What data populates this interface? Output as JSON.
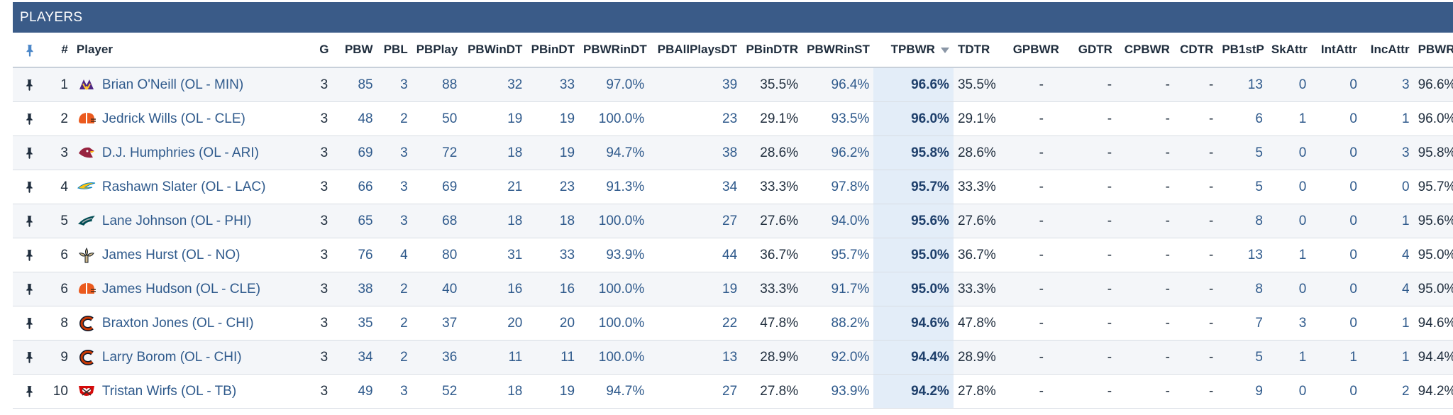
{
  "panel": {
    "title": "PLAYERS"
  },
  "columns": [
    {
      "key": "pin",
      "label": ""
    },
    {
      "key": "rank",
      "label": "#"
    },
    {
      "key": "player",
      "label": "Player"
    },
    {
      "key": "G",
      "label": "G"
    },
    {
      "key": "PBW",
      "label": "PBW"
    },
    {
      "key": "PBL",
      "label": "PBL"
    },
    {
      "key": "PBPlay",
      "label": "PBPlay"
    },
    {
      "key": "PBWinDT",
      "label": "PBWinDT"
    },
    {
      "key": "PBinDT",
      "label": "PBinDT"
    },
    {
      "key": "PBWRinDT",
      "label": "PBWRinDT"
    },
    {
      "key": "PBAllPlaysDT",
      "label": "PBAllPlaysDT"
    },
    {
      "key": "PBinDTR",
      "label": "PBinDTR"
    },
    {
      "key": "PBWRinST",
      "label": "PBWRinST"
    },
    {
      "key": "TPBWR",
      "label": "TPBWR"
    },
    {
      "key": "TDTR",
      "label": "TDTR"
    },
    {
      "key": "GPBWR",
      "label": "GPBWR"
    },
    {
      "key": "GDTR",
      "label": "GDTR"
    },
    {
      "key": "CPBWR",
      "label": "CPBWR"
    },
    {
      "key": "CDTR",
      "label": "CDTR"
    },
    {
      "key": "PB1stP",
      "label": "PB1stP"
    },
    {
      "key": "SkAttr",
      "label": "SkAttr"
    },
    {
      "key": "IntAttr",
      "label": "IntAttr"
    },
    {
      "key": "IncAttr",
      "label": "IncAttr"
    },
    {
      "key": "PBWR",
      "label": "PBWR"
    }
  ],
  "sorted_column": "TPBWR",
  "icons": {
    "pin": "pin-icon",
    "sort": "sort-descending-icon"
  },
  "colors": {
    "header_bg": "#3a5b88",
    "link": "#2f5a8c",
    "sorted_bg": "#e3edf8"
  },
  "rows": [
    {
      "rank": "1",
      "player": "Brian O'Neill (OL - MIN)",
      "team": "MIN",
      "G": "3",
      "PBW": "85",
      "PBL": "3",
      "PBPlay": "88",
      "PBWinDT": "32",
      "PBinDT": "33",
      "PBWRinDT": "97.0%",
      "PBAllPlaysDT": "39",
      "PBinDTR": "35.5%",
      "PBWRinST": "96.4%",
      "TPBWR": "96.6%",
      "TDTR": "35.5%",
      "GPBWR": "-",
      "GDTR": "-",
      "CPBWR": "-",
      "CDTR": "-",
      "PB1stP": "13",
      "SkAttr": "0",
      "IntAttr": "0",
      "IncAttr": "3",
      "PBWR": "96.6%"
    },
    {
      "rank": "2",
      "player": "Jedrick Wills (OL - CLE)",
      "team": "CLE",
      "G": "3",
      "PBW": "48",
      "PBL": "2",
      "PBPlay": "50",
      "PBWinDT": "19",
      "PBinDT": "19",
      "PBWRinDT": "100.0%",
      "PBAllPlaysDT": "23",
      "PBinDTR": "29.1%",
      "PBWRinST": "93.5%",
      "TPBWR": "96.0%",
      "TDTR": "29.1%",
      "GPBWR": "-",
      "GDTR": "-",
      "CPBWR": "-",
      "CDTR": "-",
      "PB1stP": "6",
      "SkAttr": "1",
      "IntAttr": "0",
      "IncAttr": "1",
      "PBWR": "96.0%"
    },
    {
      "rank": "3",
      "player": "D.J. Humphries (OL - ARI)",
      "team": "ARI",
      "G": "3",
      "PBW": "69",
      "PBL": "3",
      "PBPlay": "72",
      "PBWinDT": "18",
      "PBinDT": "19",
      "PBWRinDT": "94.7%",
      "PBAllPlaysDT": "38",
      "PBinDTR": "28.6%",
      "PBWRinST": "96.2%",
      "TPBWR": "95.8%",
      "TDTR": "28.6%",
      "GPBWR": "-",
      "GDTR": "-",
      "CPBWR": "-",
      "CDTR": "-",
      "PB1stP": "5",
      "SkAttr": "0",
      "IntAttr": "0",
      "IncAttr": "3",
      "PBWR": "95.8%"
    },
    {
      "rank": "4",
      "player": "Rashawn Slater (OL - LAC)",
      "team": "LAC",
      "G": "3",
      "PBW": "66",
      "PBL": "3",
      "PBPlay": "69",
      "PBWinDT": "21",
      "PBinDT": "23",
      "PBWRinDT": "91.3%",
      "PBAllPlaysDT": "34",
      "PBinDTR": "33.3%",
      "PBWRinST": "97.8%",
      "TPBWR": "95.7%",
      "TDTR": "33.3%",
      "GPBWR": "-",
      "GDTR": "-",
      "CPBWR": "-",
      "CDTR": "-",
      "PB1stP": "5",
      "SkAttr": "0",
      "IntAttr": "0",
      "IncAttr": "0",
      "PBWR": "95.7%"
    },
    {
      "rank": "5",
      "player": "Lane Johnson (OL - PHI)",
      "team": "PHI",
      "G": "3",
      "PBW": "65",
      "PBL": "3",
      "PBPlay": "68",
      "PBWinDT": "18",
      "PBinDT": "18",
      "PBWRinDT": "100.0%",
      "PBAllPlaysDT": "27",
      "PBinDTR": "27.6%",
      "PBWRinST": "94.0%",
      "TPBWR": "95.6%",
      "TDTR": "27.6%",
      "GPBWR": "-",
      "GDTR": "-",
      "CPBWR": "-",
      "CDTR": "-",
      "PB1stP": "8",
      "SkAttr": "0",
      "IntAttr": "0",
      "IncAttr": "1",
      "PBWR": "95.6%"
    },
    {
      "rank": "6",
      "player": "James Hurst (OL - NO)",
      "team": "NO",
      "G": "3",
      "PBW": "76",
      "PBL": "4",
      "PBPlay": "80",
      "PBWinDT": "31",
      "PBinDT": "33",
      "PBWRinDT": "93.9%",
      "PBAllPlaysDT": "44",
      "PBinDTR": "36.7%",
      "PBWRinST": "95.7%",
      "TPBWR": "95.0%",
      "TDTR": "36.7%",
      "GPBWR": "-",
      "GDTR": "-",
      "CPBWR": "-",
      "CDTR": "-",
      "PB1stP": "13",
      "SkAttr": "1",
      "IntAttr": "0",
      "IncAttr": "4",
      "PBWR": "95.0%"
    },
    {
      "rank": "6",
      "player": "James Hudson (OL - CLE)",
      "team": "CLE",
      "G": "3",
      "PBW": "38",
      "PBL": "2",
      "PBPlay": "40",
      "PBWinDT": "16",
      "PBinDT": "16",
      "PBWRinDT": "100.0%",
      "PBAllPlaysDT": "19",
      "PBinDTR": "33.3%",
      "PBWRinST": "91.7%",
      "TPBWR": "95.0%",
      "TDTR": "33.3%",
      "GPBWR": "-",
      "GDTR": "-",
      "CPBWR": "-",
      "CDTR": "-",
      "PB1stP": "8",
      "SkAttr": "0",
      "IntAttr": "0",
      "IncAttr": "4",
      "PBWR": "95.0%"
    },
    {
      "rank": "8",
      "player": "Braxton Jones (OL - CHI)",
      "team": "CHI",
      "G": "3",
      "PBW": "35",
      "PBL": "2",
      "PBPlay": "37",
      "PBWinDT": "20",
      "PBinDT": "20",
      "PBWRinDT": "100.0%",
      "PBAllPlaysDT": "22",
      "PBinDTR": "47.8%",
      "PBWRinST": "88.2%",
      "TPBWR": "94.6%",
      "TDTR": "47.8%",
      "GPBWR": "-",
      "GDTR": "-",
      "CPBWR": "-",
      "CDTR": "-",
      "PB1stP": "7",
      "SkAttr": "3",
      "IntAttr": "0",
      "IncAttr": "1",
      "PBWR": "94.6%"
    },
    {
      "rank": "9",
      "player": "Larry Borom (OL - CHI)",
      "team": "CHI",
      "G": "3",
      "PBW": "34",
      "PBL": "2",
      "PBPlay": "36",
      "PBWinDT": "11",
      "PBinDT": "11",
      "PBWRinDT": "100.0%",
      "PBAllPlaysDT": "13",
      "PBinDTR": "28.9%",
      "PBWRinST": "92.0%",
      "TPBWR": "94.4%",
      "TDTR": "28.9%",
      "GPBWR": "-",
      "GDTR": "-",
      "CPBWR": "-",
      "CDTR": "-",
      "PB1stP": "5",
      "SkAttr": "1",
      "IntAttr": "1",
      "IncAttr": "1",
      "PBWR": "94.4%"
    },
    {
      "rank": "10",
      "player": "Tristan Wirfs (OL - TB)",
      "team": "TB",
      "G": "3",
      "PBW": "49",
      "PBL": "3",
      "PBPlay": "52",
      "PBWinDT": "18",
      "PBinDT": "19",
      "PBWRinDT": "94.7%",
      "PBAllPlaysDT": "27",
      "PBinDTR": "27.8%",
      "PBWRinST": "93.9%",
      "TPBWR": "94.2%",
      "TDTR": "27.8%",
      "GPBWR": "-",
      "GDTR": "-",
      "CPBWR": "-",
      "CDTR": "-",
      "PB1stP": "9",
      "SkAttr": "0",
      "IntAttr": "0",
      "IncAttr": "2",
      "PBWR": "94.2%"
    }
  ]
}
